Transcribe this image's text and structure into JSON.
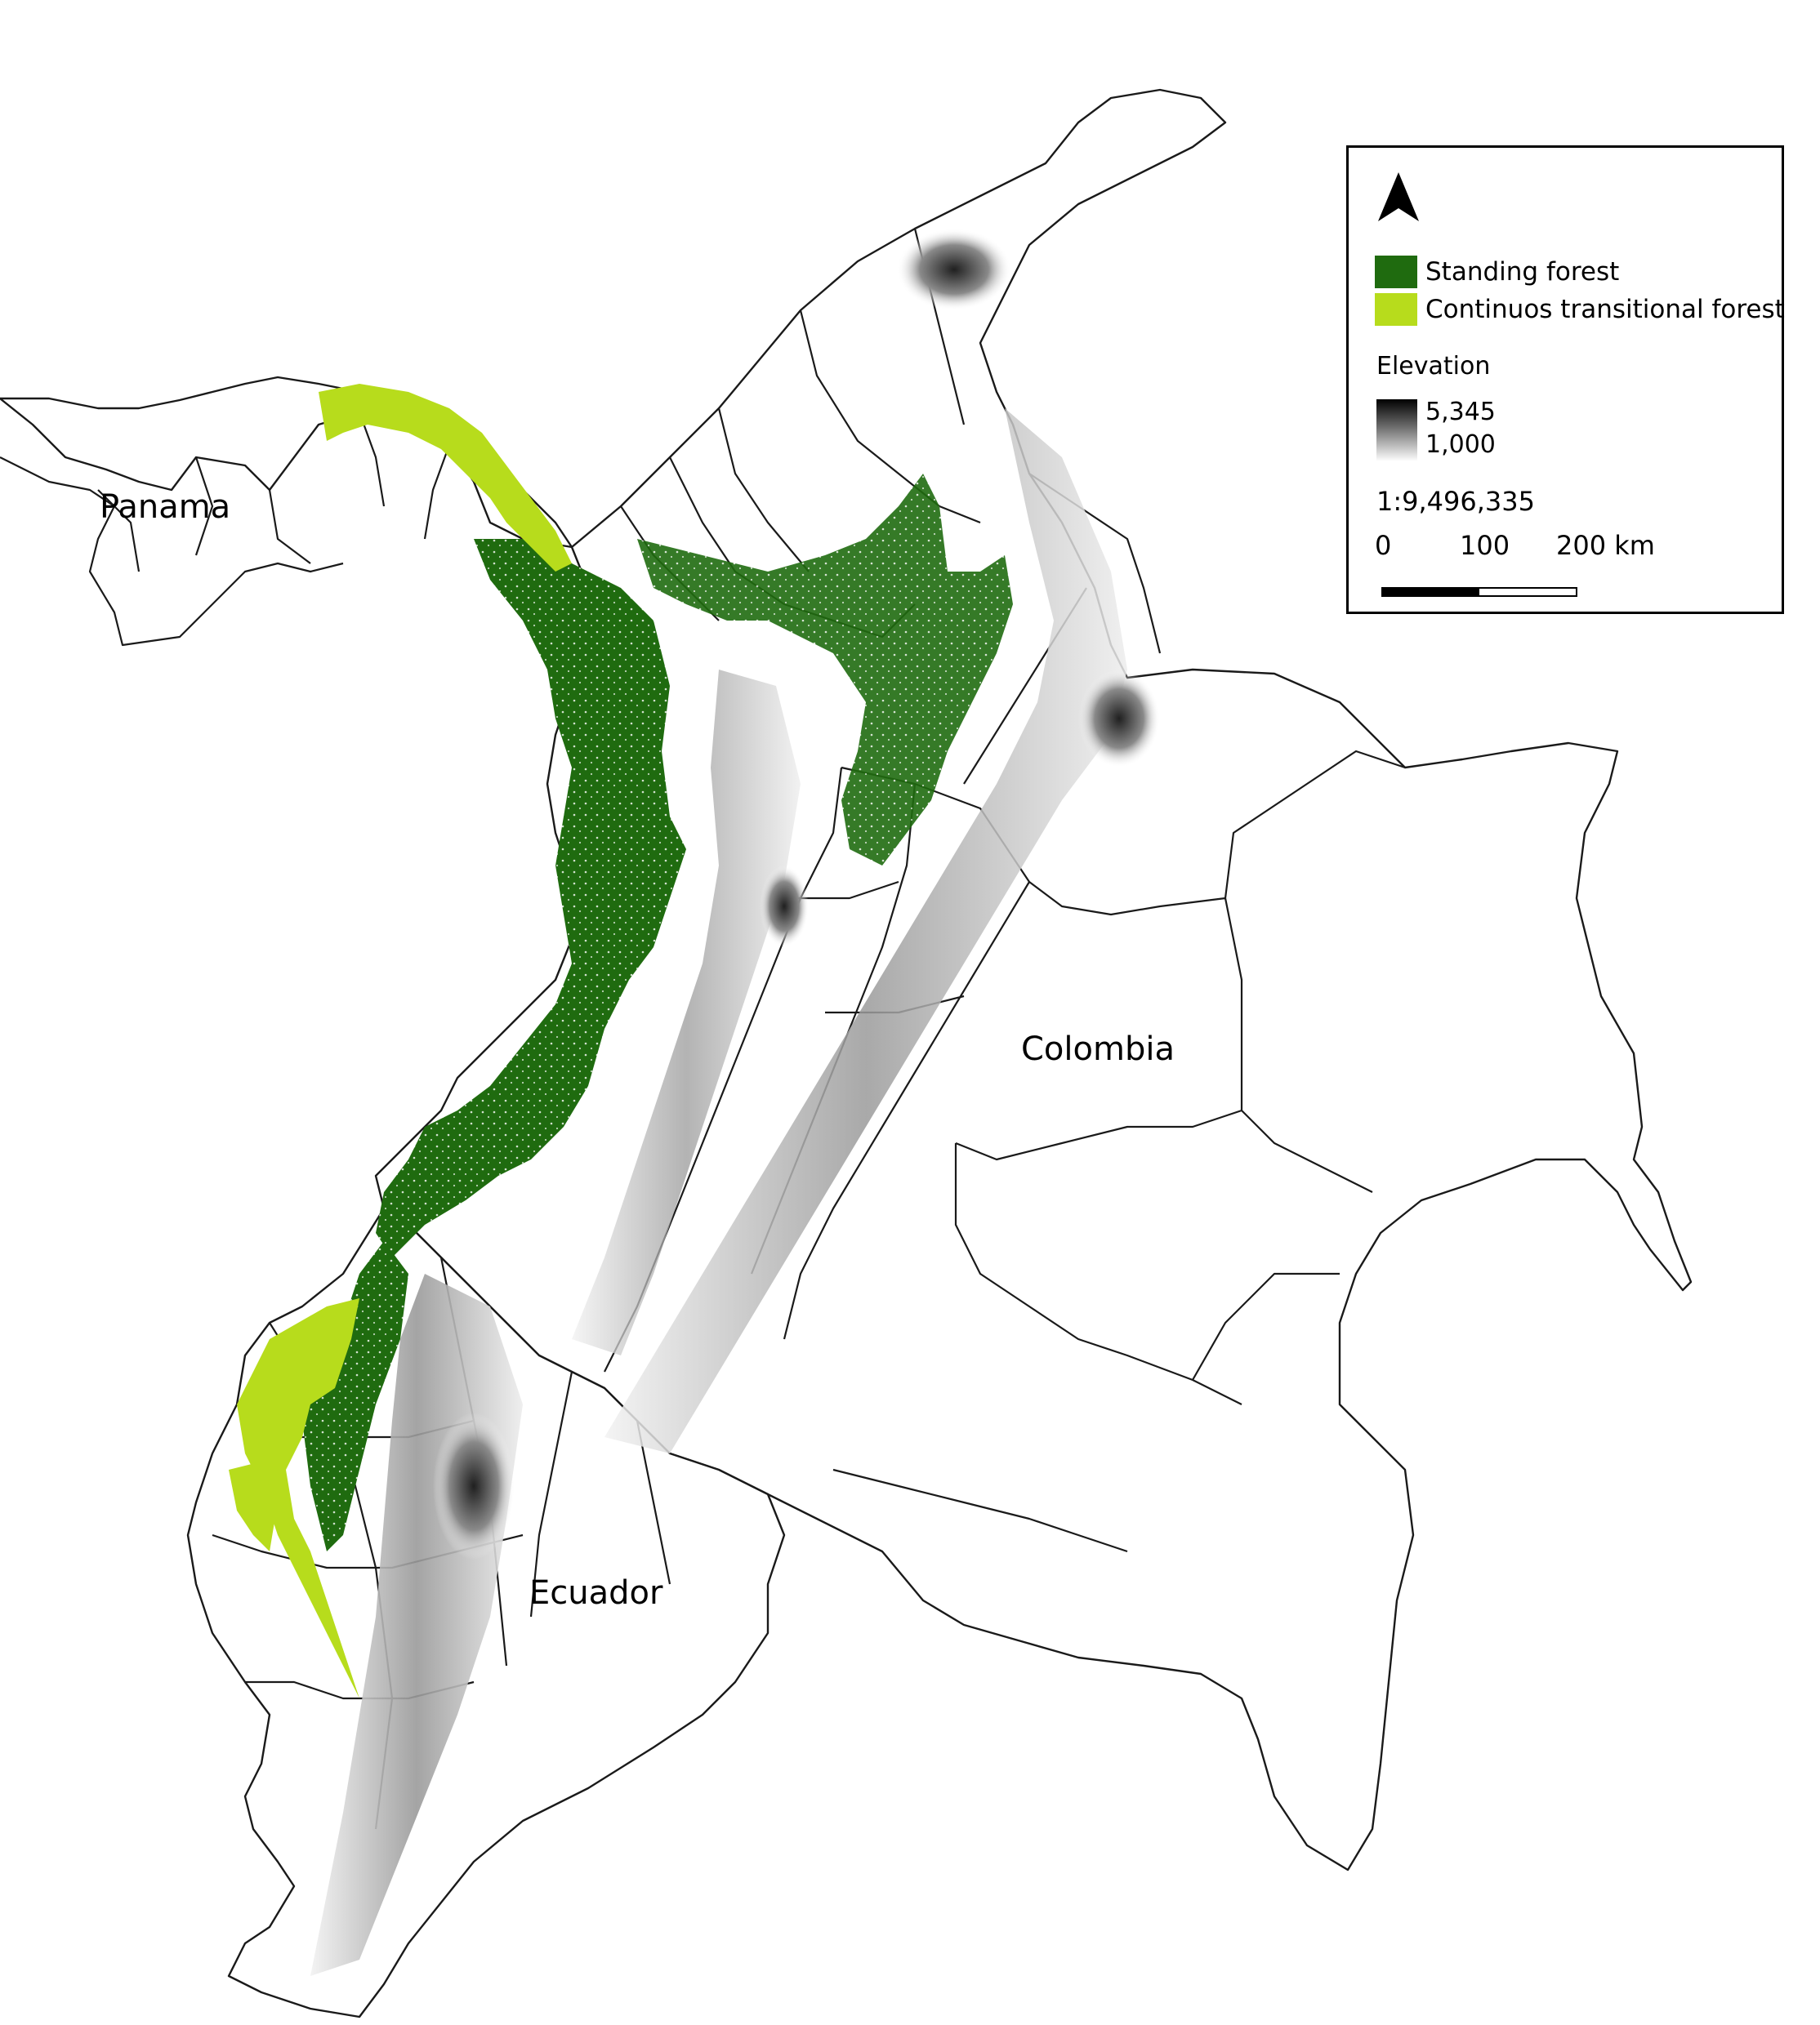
{
  "map": {
    "country_labels": {
      "panama": "Panama",
      "colombia": "Colombia",
      "ecuador": "Ecuador"
    }
  },
  "legend": {
    "north_arrow_icon": "north-arrow-icon",
    "items": [
      {
        "label": "Standing forest",
        "color": "#1f6b0f"
      },
      {
        "label": "Continuos transitional forest",
        "color": "#b7dc1c"
      }
    ],
    "elevation": {
      "title": "Elevation",
      "max_label": "5,345",
      "min_label": "1,000",
      "max_color": "#000000",
      "min_color": "#ffffff"
    },
    "scale": {
      "ratio": "1:9,496,335",
      "tick_0": "0",
      "tick_1": "100",
      "tick_2": "200 km"
    }
  }
}
